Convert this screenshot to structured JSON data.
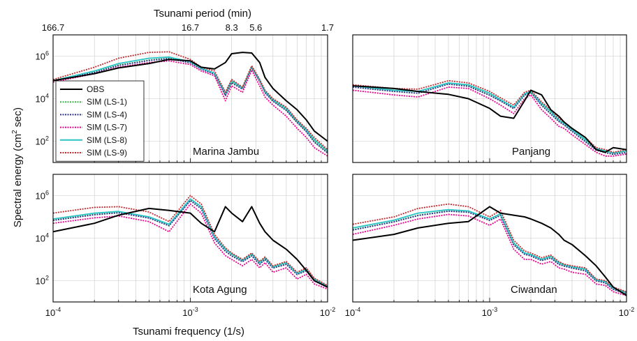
{
  "top_axis": {
    "label": "Tsunami period (min)",
    "ticks": [
      {
        "label": "166.7",
        "freq": 0.0001
      },
      {
        "label": "16.7",
        "freq": 0.001
      },
      {
        "label": "8.3",
        "freq": 0.002
      },
      {
        "label": "5.6",
        "freq": 0.003
      },
      {
        "label": "1.7",
        "freq": 0.01
      }
    ]
  },
  "y_axis_label": "Spectral energy (cm",
  "y_axis_label_sup": "2",
  "y_axis_label_tail": " sec)",
  "x_axis_label": "Tsunami frequency (1/s)",
  "x_tick_labels": [
    {
      "base": "10",
      "exp": "-4",
      "freq": 0.0001
    },
    {
      "base": "10",
      "exp": "-3",
      "freq": 0.001
    },
    {
      "base": "10",
      "exp": "-2",
      "freq": 0.01
    }
  ],
  "y_tick_labels": [
    {
      "base": "10",
      "exp": "2",
      "value": 100
    },
    {
      "base": "10",
      "exp": "4",
      "value": 10000
    },
    {
      "base": "10",
      "exp": "6",
      "value": 1000000
    }
  ],
  "legend": [
    {
      "name": "OBS",
      "color": "#000000",
      "dash": "solid"
    },
    {
      "name": "SIM (LS-1)",
      "color": "#39b54a",
      "dash": "dot"
    },
    {
      "name": "SIM (LS-4)",
      "color": "#2e3192",
      "dash": "dot"
    },
    {
      "name": "SIM (LS-7)",
      "color": "#ec008c",
      "dash": "dot"
    },
    {
      "name": "SIM (LS-8)",
      "color": "#29c4c4",
      "dash": "solid"
    },
    {
      "name": "SIM (LS-9)",
      "color": "#c1272d",
      "dash": "dot"
    }
  ],
  "chart_data": [
    {
      "type": "line",
      "panel": "Marina Jambu",
      "x_scale": "log",
      "y_scale": "log",
      "xlim": [
        0.0001,
        0.01
      ],
      "ylim": [
        10,
        10000000
      ],
      "x": [
        0.0001,
        0.0002,
        0.0003,
        0.0005,
        0.0007,
        0.001,
        0.0012,
        0.0015,
        0.0018,
        0.002,
        0.0024,
        0.0028,
        0.0032,
        0.0035,
        0.004,
        0.005,
        0.006,
        0.007,
        0.008,
        0.01
      ],
      "series": [
        {
          "name": "OBS",
          "values": [
            70000,
            150000,
            280000,
            450000,
            700000,
            600000,
            300000,
            250000,
            500000,
            1300000,
            1500000,
            1400000,
            500000,
            100000,
            30000,
            8000,
            3000,
            1000,
            300,
            100
          ]
        },
        {
          "name": "SIM (LS-1)",
          "values": [
            70000,
            180000,
            380000,
            650000,
            800000,
            500000,
            250000,
            150000,
            15000,
            60000,
            30000,
            300000,
            70000,
            20000,
            8000,
            3000,
            800,
            300,
            100,
            30
          ]
        },
        {
          "name": "SIM (LS-4)",
          "values": [
            70000,
            170000,
            360000,
            620000,
            770000,
            480000,
            240000,
            140000,
            14000,
            55000,
            28000,
            280000,
            65000,
            19000,
            7500,
            2800,
            750,
            280,
            90,
            28
          ]
        },
        {
          "name": "SIM (LS-7)",
          "values": [
            60000,
            150000,
            300000,
            500000,
            600000,
            400000,
            200000,
            120000,
            8000,
            40000,
            20000,
            220000,
            40000,
            12000,
            5000,
            1500,
            400,
            150,
            50,
            20
          ]
        },
        {
          "name": "SIM (LS-8)",
          "values": [
            70000,
            200000,
            450000,
            800000,
            900000,
            550000,
            270000,
            160000,
            18000,
            70000,
            32000,
            320000,
            75000,
            22000,
            9000,
            3500,
            900,
            350,
            120,
            35
          ]
        },
        {
          "name": "SIM (LS-9)",
          "values": [
            80000,
            300000,
            800000,
            1500000,
            1600000,
            700000,
            300000,
            200000,
            20000,
            80000,
            35000,
            350000,
            80000,
            25000,
            10000,
            4000,
            1000,
            400,
            150,
            40
          ]
        }
      ]
    },
    {
      "type": "line",
      "panel": "Panjang",
      "x_scale": "log",
      "y_scale": "log",
      "xlim": [
        0.0001,
        0.01
      ],
      "ylim": [
        10,
        10000000
      ],
      "x": [
        0.0001,
        0.0002,
        0.0003,
        0.0005,
        0.0007,
        0.001,
        0.0012,
        0.0015,
        0.0018,
        0.002,
        0.0024,
        0.0028,
        0.0032,
        0.0035,
        0.004,
        0.005,
        0.006,
        0.007,
        0.008,
        0.01
      ],
      "series": [
        {
          "name": "OBS",
          "values": [
            40000,
            30000,
            22000,
            16000,
            10000,
            3500,
            1500,
            1200,
            8000,
            25000,
            15000,
            3000,
            1500,
            800,
            400,
            150,
            40,
            30,
            50,
            40
          ]
        },
        {
          "name": "SIM (LS-1)",
          "values": [
            35000,
            22000,
            18000,
            50000,
            40000,
            15000,
            8000,
            3500,
            15000,
            20000,
            5000,
            2000,
            900,
            600,
            300,
            100,
            40,
            30,
            25,
            30
          ]
        },
        {
          "name": "SIM (LS-4)",
          "values": [
            35000,
            22000,
            18000,
            48000,
            38000,
            14500,
            7800,
            3400,
            14500,
            19500,
            4800,
            1900,
            850,
            580,
            290,
            95,
            38,
            29,
            24,
            29
          ]
        },
        {
          "name": "SIM (LS-7)",
          "values": [
            25000,
            15000,
            12000,
            35000,
            30000,
            10000,
            5000,
            2000,
            10000,
            15000,
            3000,
            1200,
            500,
            400,
            200,
            70,
            30,
            20,
            20,
            25
          ]
        },
        {
          "name": "SIM (LS-8)",
          "values": [
            40000,
            25000,
            22000,
            55000,
            45000,
            18000,
            9000,
            4000,
            17000,
            22000,
            6000,
            2500,
            1000,
            700,
            350,
            120,
            45,
            35,
            28,
            35
          ]
        },
        {
          "name": "SIM (LS-9)",
          "values": [
            45000,
            30000,
            28000,
            70000,
            55000,
            22000,
            11000,
            5000,
            20000,
            25000,
            7000,
            3000,
            1200,
            800,
            400,
            150,
            50,
            40,
            30,
            40
          ]
        }
      ]
    },
    {
      "type": "line",
      "panel": "Kota Agung",
      "x_scale": "log",
      "y_scale": "log",
      "xlim": [
        0.0001,
        0.01
      ],
      "ylim": [
        10,
        10000000
      ],
      "x": [
        0.0001,
        0.0002,
        0.0003,
        0.0005,
        0.0007,
        0.001,
        0.0012,
        0.0015,
        0.0018,
        0.002,
        0.0024,
        0.0028,
        0.0032,
        0.0035,
        0.004,
        0.005,
        0.006,
        0.007,
        0.008,
        0.01
      ],
      "series": [
        {
          "name": "OBS",
          "values": [
            20000,
            50000,
            120000,
            250000,
            200000,
            150000,
            50000,
            20000,
            300000,
            150000,
            60000,
            300000,
            50000,
            20000,
            8000,
            3000,
            1000,
            300,
            100,
            50
          ]
        },
        {
          "name": "SIM (LS-1)",
          "values": [
            70000,
            130000,
            160000,
            90000,
            40000,
            600000,
            250000,
            10000,
            2500,
            1500,
            800,
            1500,
            600,
            1000,
            400,
            600,
            200,
            300,
            100,
            50
          ]
        },
        {
          "name": "SIM (LS-4)",
          "values": [
            68000,
            125000,
            155000,
            88000,
            38000,
            580000,
            240000,
            9500,
            2400,
            1450,
            780,
            1450,
            580,
            980,
            390,
            580,
            195,
            290,
            98,
            48
          ]
        },
        {
          "name": "SIM (LS-7)",
          "values": [
            50000,
            90000,
            110000,
            60000,
            20000,
            400000,
            150000,
            6000,
            1500,
            1000,
            500,
            1000,
            400,
            700,
            250,
            400,
            120,
            200,
            70,
            40
          ]
        },
        {
          "name": "SIM (LS-8)",
          "values": [
            80000,
            150000,
            180000,
            100000,
            45000,
            700000,
            300000,
            12000,
            3000,
            1800,
            900,
            1800,
            700,
            1200,
            450,
            700,
            220,
            350,
            120,
            55
          ]
        },
        {
          "name": "SIM (LS-9)",
          "values": [
            150000,
            280000,
            300000,
            170000,
            60000,
            1000000,
            400000,
            15000,
            3500,
            2000,
            1000,
            2000,
            800,
            1300,
            500,
            800,
            250,
            400,
            130,
            60
          ]
        }
      ]
    },
    {
      "type": "line",
      "panel": "Ciwandan",
      "x_scale": "log",
      "y_scale": "log",
      "xlim": [
        0.0001,
        0.01
      ],
      "ylim": [
        10,
        10000000
      ],
      "x": [
        0.0001,
        0.0002,
        0.0003,
        0.0005,
        0.0007,
        0.001,
        0.0012,
        0.0015,
        0.0018,
        0.002,
        0.0024,
        0.0028,
        0.0032,
        0.0035,
        0.004,
        0.005,
        0.006,
        0.007,
        0.008,
        0.01
      ],
      "series": [
        {
          "name": "OBS",
          "values": [
            8000,
            15000,
            30000,
            50000,
            60000,
            300000,
            150000,
            120000,
            100000,
            80000,
            50000,
            30000,
            15000,
            8000,
            5000,
            1500,
            500,
            150,
            50,
            20
          ]
        },
        {
          "name": "SIM (LS-1)",
          "values": [
            25000,
            60000,
            120000,
            190000,
            170000,
            70000,
            120000,
            5000,
            1800,
            1500,
            900,
            1200,
            600,
            500,
            400,
            300,
            100,
            80,
            40,
            25
          ]
        },
        {
          "name": "SIM (LS-4)",
          "values": [
            24000,
            58000,
            115000,
            185000,
            165000,
            68000,
            115000,
            4800,
            1750,
            1450,
            880,
            1150,
            580,
            480,
            390,
            290,
            98,
            78,
            39,
            24
          ]
        },
        {
          "name": "SIM (LS-7)",
          "values": [
            15000,
            40000,
            80000,
            130000,
            110000,
            40000,
            80000,
            3000,
            1000,
            1000,
            600,
            800,
            400,
            350,
            250,
            200,
            70,
            60,
            30,
            20
          ]
        },
        {
          "name": "SIM (LS-8)",
          "values": [
            30000,
            70000,
            150000,
            220000,
            190000,
            80000,
            140000,
            6000,
            2000,
            1700,
            1000,
            1400,
            700,
            550,
            450,
            350,
            110,
            90,
            45,
            28
          ]
        },
        {
          "name": "SIM (LS-9)",
          "values": [
            45000,
            100000,
            250000,
            400000,
            300000,
            100000,
            200000,
            8000,
            2500,
            2000,
            1200,
            1600,
            800,
            600,
            500,
            400,
            120,
            100,
            50,
            30
          ]
        }
      ]
    }
  ]
}
